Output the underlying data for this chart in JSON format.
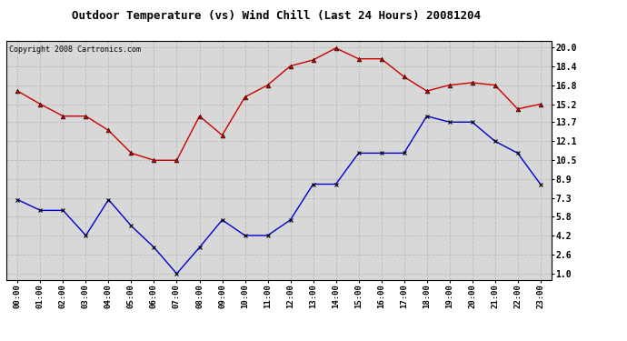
{
  "title": "Outdoor Temperature (vs) Wind Chill (Last 24 Hours) 20081204",
  "copyright": "Copyright 2008 Cartronics.com",
  "hours": [
    "00:00",
    "01:00",
    "02:00",
    "03:00",
    "04:00",
    "05:00",
    "06:00",
    "07:00",
    "08:00",
    "09:00",
    "10:00",
    "11:00",
    "12:00",
    "13:00",
    "14:00",
    "15:00",
    "16:00",
    "17:00",
    "18:00",
    "19:00",
    "20:00",
    "21:00",
    "22:00",
    "23:00"
  ],
  "red_data": [
    16.3,
    15.2,
    14.2,
    14.2,
    13.0,
    11.1,
    10.5,
    10.5,
    14.2,
    12.6,
    15.8,
    16.8,
    18.4,
    18.9,
    19.9,
    19.0,
    19.0,
    17.5,
    16.3,
    16.8,
    17.0,
    16.8,
    14.8,
    15.2
  ],
  "blue_data": [
    7.2,
    6.3,
    6.3,
    4.2,
    7.2,
    5.0,
    3.2,
    1.0,
    3.2,
    5.5,
    4.2,
    4.2,
    5.5,
    8.5,
    8.5,
    11.1,
    11.1,
    11.1,
    14.2,
    13.7,
    13.7,
    12.1,
    11.1,
    8.5
  ],
  "red_color": "#cc0000",
  "blue_color": "#0000cc",
  "yticks": [
    1.0,
    2.6,
    4.2,
    5.8,
    7.3,
    8.9,
    10.5,
    12.1,
    13.7,
    15.2,
    16.8,
    18.4,
    20.0
  ],
  "ylim": [
    0.5,
    20.5
  ],
  "bg_color": "#d8d8d8",
  "grid_color": "#bbbbbb",
  "title_fontsize": 9,
  "copyright_fontsize": 6,
  "tick_fontsize": 6.5,
  "ytick_fontsize": 7
}
